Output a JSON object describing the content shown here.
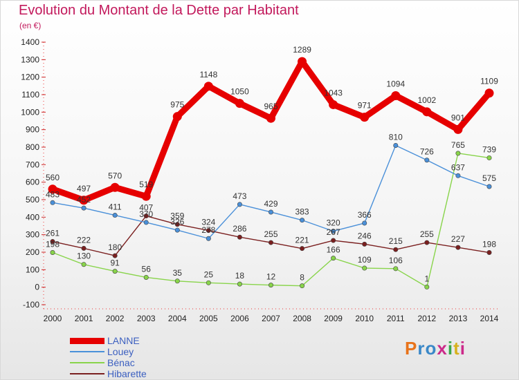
{
  "header": {
    "title": "Evolution du Montant de la Dette par Habitant",
    "unit": "(en €)"
  },
  "logo": {
    "text": "Proxiti",
    "colors": [
      "#e8731a",
      "#3a88c8",
      "#3a88c8",
      "#cc2a8a",
      "#3aa84a",
      "#d6b11e",
      "#cc2a8a"
    ]
  },
  "chart_data": {
    "type": "line",
    "title": "Evolution du Montant de la Dette par Habitant",
    "ylabel": "(en €)",
    "x": [
      "2000",
      "2001",
      "2002",
      "2003",
      "2004",
      "2005",
      "2006",
      "2007",
      "2008",
      "2009",
      "2010",
      "2011",
      "2012",
      "2013",
      "2014"
    ],
    "ylim": [
      -100,
      1400
    ],
    "yticks": [
      "-100",
      "0",
      "100",
      "200",
      "300",
      "400",
      "500",
      "600",
      "700",
      "800",
      "900",
      "1000",
      "1100",
      "1200",
      "1300",
      "1400"
    ],
    "grid": false,
    "legend": "bottom-left",
    "series": [
      {
        "name": "LANNE",
        "color": "#e60000",
        "values": [
          560,
          497,
          570,
          519,
          975,
          1148,
          1050,
          965,
          1289,
          1043,
          971,
          1094,
          1002,
          901,
          1109
        ],
        "labels": [
          "560",
          "497",
          "570",
          "519",
          "975",
          "1148",
          "1050",
          "965",
          "1289",
          "1043",
          "971",
          "1094",
          "1002",
          "901",
          "1109"
        ]
      },
      {
        "name": "Louey",
        "color": "#4a90d9",
        "values": [
          483,
          452,
          411,
          370,
          326,
          278,
          473,
          429,
          383,
          320,
          366,
          810,
          726,
          637,
          575
        ],
        "labels": [
          "483",
          "452",
          "411",
          "370",
          "326",
          "278",
          "473",
          "429",
          "383",
          "320",
          "366",
          "810",
          "726",
          "637",
          "575"
        ]
      },
      {
        "name": "Bénac",
        "color": "#88d44a",
        "values": [
          198,
          130,
          91,
          56,
          35,
          25,
          18,
          12,
          8,
          166,
          109,
          106,
          1,
          765,
          739
        ],
        "labels": [
          "198",
          "130",
          "91",
          "56",
          "35",
          "25",
          "18",
          "12",
          "8",
          "166",
          "109",
          "106",
          "1",
          "765",
          "739"
        ]
      },
      {
        "name": "Hibarette",
        "color": "#7a1f1f",
        "values": [
          261,
          222,
          180,
          407,
          359,
          324,
          286,
          255,
          221,
          267,
          246,
          215,
          255,
          227,
          198
        ],
        "labels": [
          "261",
          "222",
          "180",
          "407",
          "359",
          "324",
          "286",
          "255",
          "221",
          "267",
          "246",
          "215",
          "255",
          "227",
          "198"
        ]
      }
    ]
  }
}
